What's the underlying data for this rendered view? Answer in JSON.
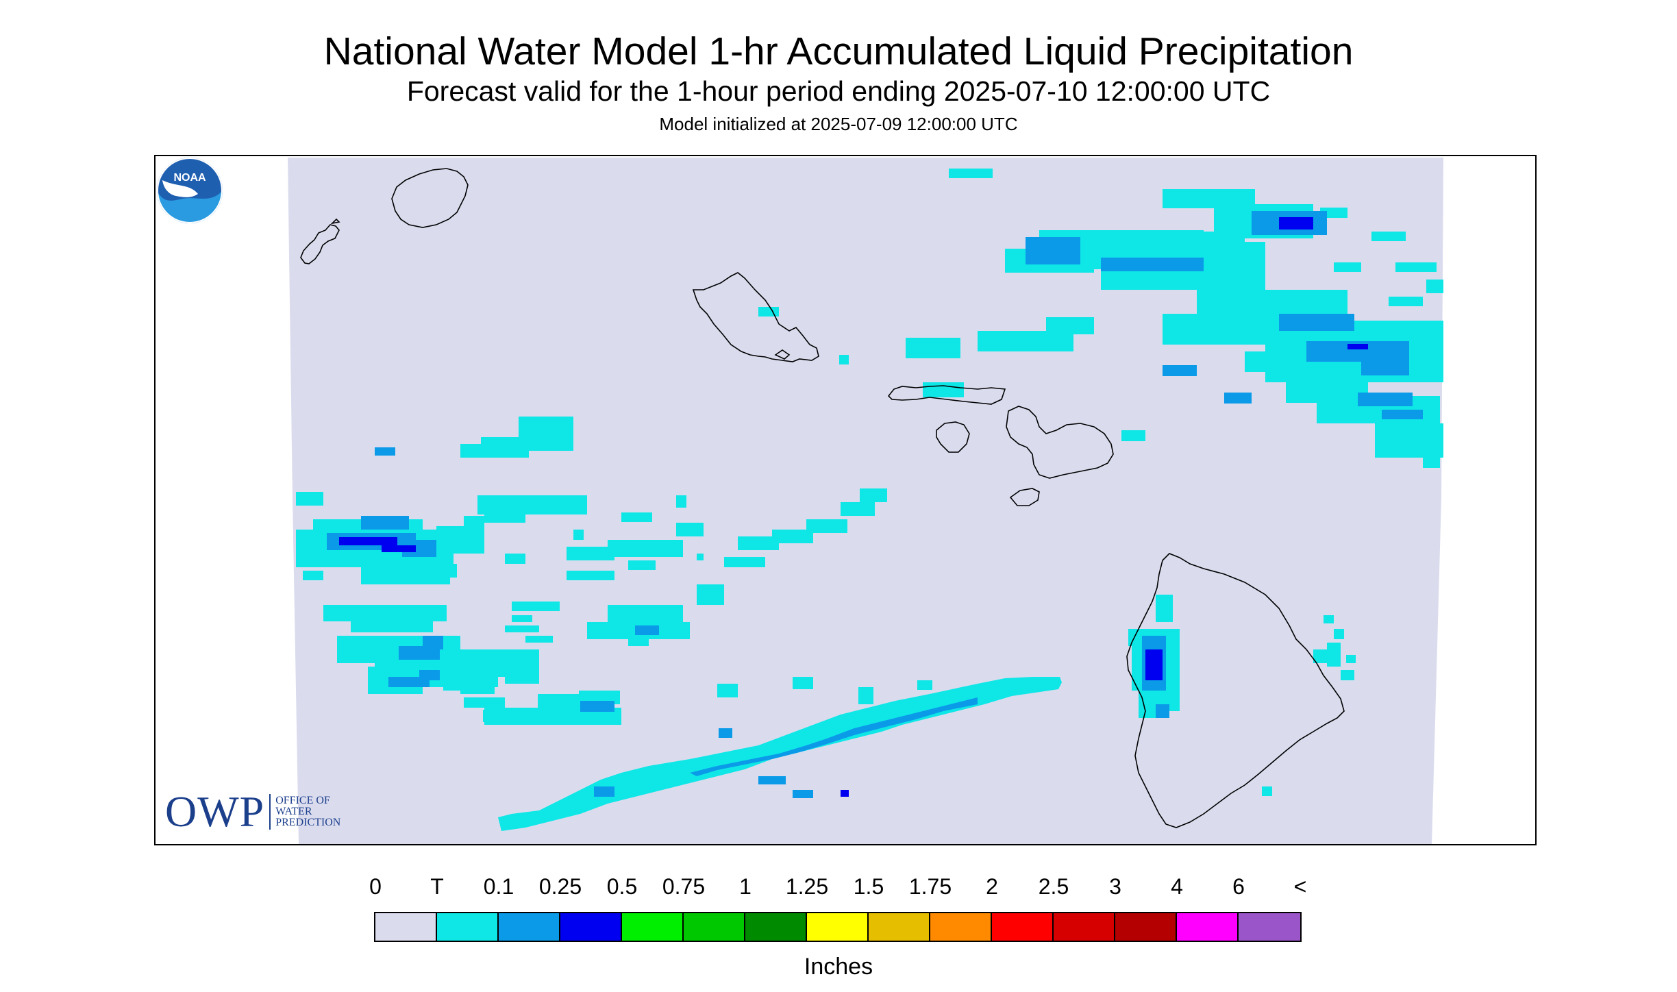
{
  "title": "National Water Model 1-hr Accumulated Liquid Precipitation",
  "subtitle": "Forecast valid for the 1-hour period ending 2025-07-10 12:00:00 UTC",
  "init_line": "Model initialized at 2025-07-09 12:00:00 UTC",
  "legend": {
    "labels": [
      "0",
      "T",
      "0.1",
      "0.25",
      "0.5",
      "0.75",
      "1",
      "1.25",
      "1.5",
      "1.75",
      "2",
      "2.5",
      "3",
      "4",
      "6",
      "<"
    ],
    "colors": [
      "#dadcee",
      "#0fe6e6",
      "#0a9ae8",
      "#0000f0",
      "#00ee00",
      "#00c800",
      "#008a00",
      "#ffff00",
      "#e6be00",
      "#ff8a00",
      "#ff0000",
      "#d60000",
      "#b40000",
      "#ff00ff",
      "#9a55c8"
    ],
    "units": "Inches"
  },
  "logos": {
    "owp_mark": "OWP",
    "owp_text": [
      "OFFICE OF",
      "WATER",
      "PREDICTION"
    ],
    "noaa_text": "NOAA"
  },
  "map": {
    "region": "Hawaiian Islands",
    "background_color": "#dadcee",
    "islands": [
      "Niihau",
      "Kauai",
      "Oahu",
      "Molokai",
      "Lanai",
      "Maui",
      "Kahoolawe",
      "Hawaii"
    ]
  }
}
